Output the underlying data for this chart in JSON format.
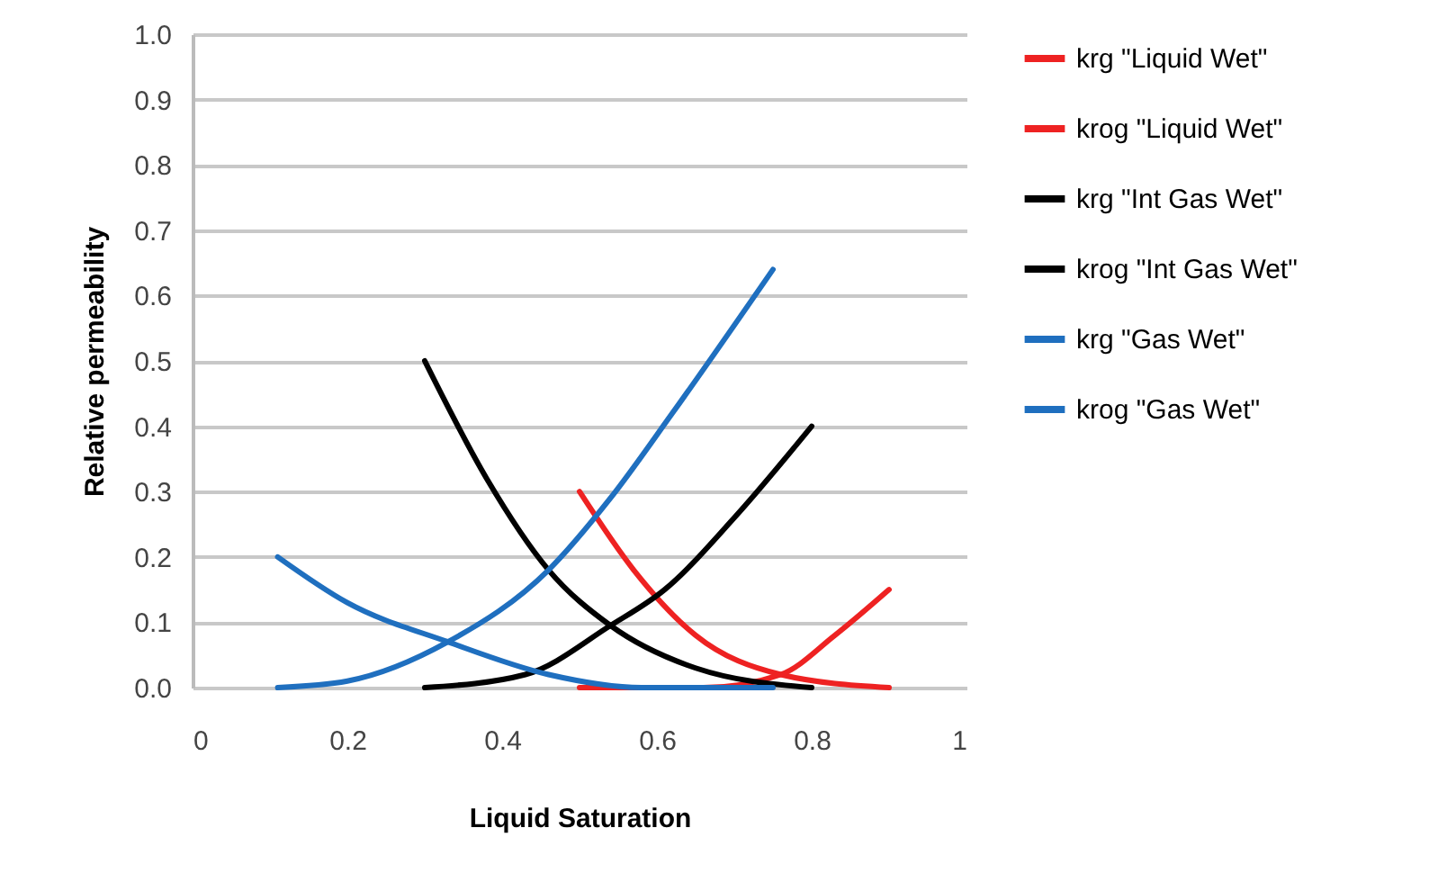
{
  "chart_data": {
    "type": "line",
    "xlabel": "Liquid Saturation",
    "ylabel": "Relative permeability",
    "xlim": [
      0,
      1
    ],
    "xticks": [
      0,
      0.2,
      0.4,
      0.6,
      0.8,
      1
    ],
    "ylim": [
      0,
      1
    ],
    "yticks": [
      {
        "value": 0,
        "label": "0.0"
      },
      0.1,
      0.2,
      0.3,
      0.4,
      0.5,
      0.6,
      0.7,
      0.8,
      0.9,
      {
        "value": 1,
        "label": "1.0"
      }
    ],
    "grid": "y",
    "legend": "right",
    "marker": "none",
    "line_style": "solid",
    "series": [
      {
        "name": "krg \"Liquid Wet\"",
        "color": "#ee2222",
        "x": [
          0.5,
          0.57,
          0.65,
          0.76,
          0.9
        ],
        "values": [
          0.3,
          0.18,
          0.08,
          0.02,
          0
        ]
      },
      {
        "name": "krog \"Liquid Wet\"",
        "color": "#ee2222",
        "x": [
          0.5,
          0.66,
          0.76,
          0.83,
          0.9
        ],
        "values": [
          0,
          0,
          0.02,
          0.08,
          0.15
        ]
      },
      {
        "name": "krg \"Int Gas Wet\"",
        "color": "#000000",
        "x": [
          0.3,
          0.38,
          0.46,
          0.54,
          0.65,
          0.8
        ],
        "values": [
          0.5,
          0.32,
          0.18,
          0.095,
          0.03,
          0
        ]
      },
      {
        "name": "krog \"Int Gas Wet\"",
        "color": "#000000",
        "x": [
          0.3,
          0.43,
          0.54,
          0.61,
          0.7,
          0.8
        ],
        "values": [
          0,
          0.02,
          0.095,
          0.15,
          0.26,
          0.4
        ]
      },
      {
        "name": "krg \"Gas Wet\"",
        "color": "#1f6fbf",
        "x": [
          0.11,
          0.2,
          0.33,
          0.46,
          0.54,
          0.62,
          0.75
        ],
        "values": [
          0,
          0.01,
          0.07,
          0.18,
          0.29,
          0.42,
          0.64
        ]
      },
      {
        "name": "krog \"Gas Wet\"",
        "color": "#1f6fbf",
        "x": [
          0.11,
          0.2,
          0.33,
          0.46,
          0.58,
          0.75
        ],
        "values": [
          0.2,
          0.13,
          0.07,
          0.02,
          0,
          0
        ]
      }
    ]
  }
}
